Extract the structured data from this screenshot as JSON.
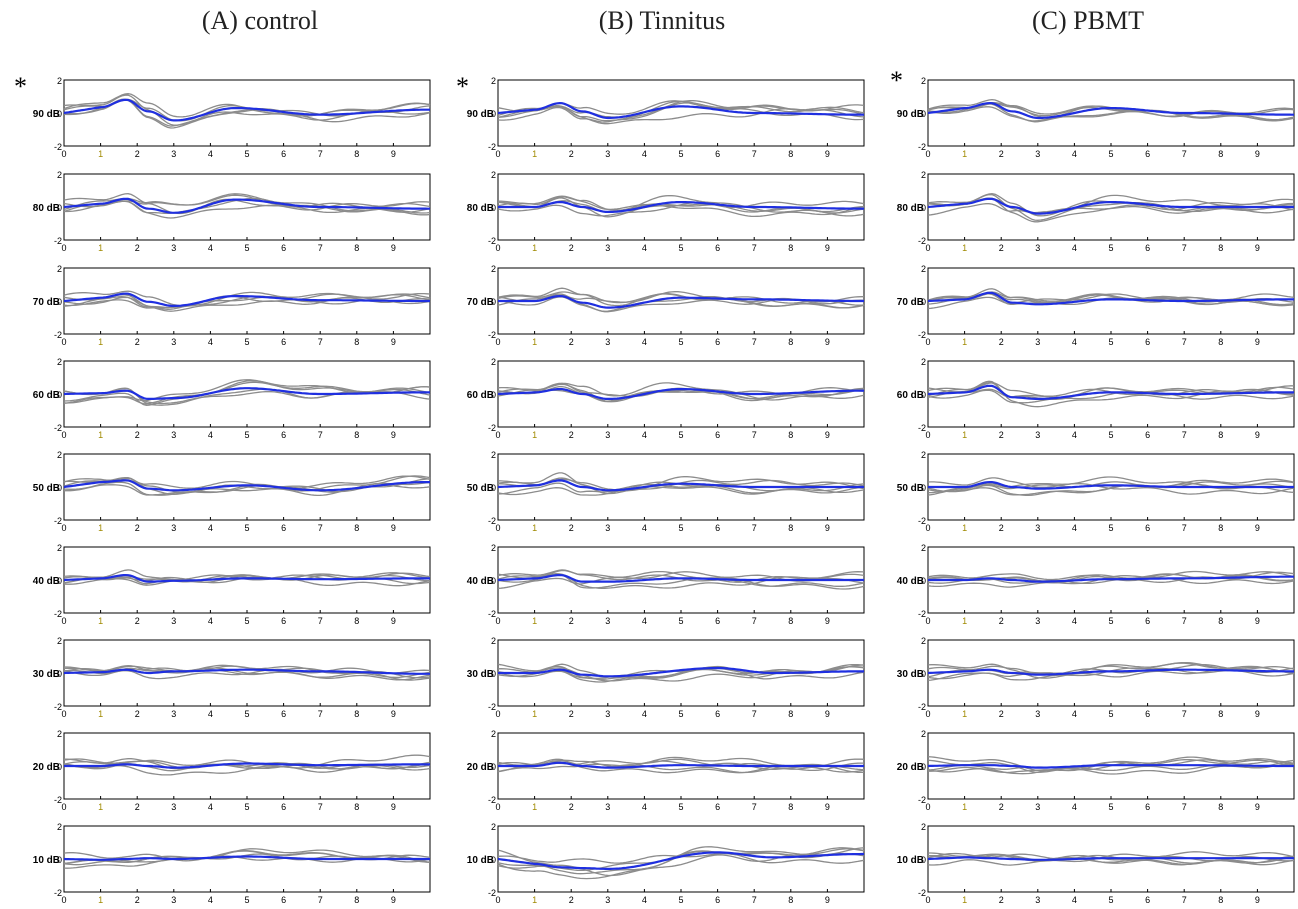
{
  "columns": [
    {
      "title": "(A) control"
    },
    {
      "title": "(B) Tinnitus"
    },
    {
      "title": "(C) PBMT"
    }
  ],
  "marker": "*",
  "colors": {
    "mean": "#1f2fe0",
    "individual": "#8c8c8c",
    "axis": "#000000",
    "tick_accent": "#a08a00"
  },
  "chart_data": {
    "type": "line",
    "layout": "grid of small multiples: 9 rows (stimulus level) x 3 columns (group)",
    "x_ticks": [
      0,
      1,
      2,
      3,
      4,
      5,
      6,
      7,
      8,
      9
    ],
    "xlim": [
      0,
      10
    ],
    "y_ticks": [
      -2,
      0,
      2
    ],
    "ylim": [
      -2,
      2
    ],
    "levels": [
      "90 dB",
      "80 dB",
      "70 dB",
      "60 dB",
      "50 dB",
      "40 dB",
      "30 dB",
      "20 dB",
      "10 dB"
    ],
    "series_styles": {
      "mean": "blue thick line",
      "individual": "gray thin lines (5 per panel)"
    },
    "panels": [
      [
        {
          "level": "90 dB",
          "mean_peaks": [
            [
              1.0,
              0.35
            ],
            [
              1.7,
              0.8
            ],
            [
              2.3,
              0.1
            ],
            [
              3.0,
              -0.45
            ],
            [
              4.7,
              0.3
            ],
            [
              7.0,
              -0.1
            ],
            [
              9.9,
              0.2
            ]
          ]
        },
        {
          "level": "80 dB",
          "mean_peaks": [
            [
              1.0,
              0.2
            ],
            [
              1.7,
              0.5
            ],
            [
              2.3,
              -0.1
            ],
            [
              3.0,
              -0.35
            ],
            [
              4.7,
              0.45
            ],
            [
              7.0,
              0.0
            ],
            [
              9.9,
              -0.1
            ]
          ]
        },
        {
          "level": "70 dB",
          "mean_peaks": [
            [
              1.0,
              0.2
            ],
            [
              1.7,
              0.45
            ],
            [
              2.3,
              -0.05
            ],
            [
              3.0,
              -0.3
            ],
            [
              4.7,
              0.3
            ],
            [
              7.0,
              0.05
            ],
            [
              9.9,
              0.0
            ]
          ]
        },
        {
          "level": "60 dB",
          "mean_peaks": [
            [
              1.0,
              0.05
            ],
            [
              1.7,
              0.2
            ],
            [
              2.3,
              -0.3
            ],
            [
              3.0,
              -0.25
            ],
            [
              5.0,
              0.35
            ],
            [
              7.0,
              0.0
            ],
            [
              9.9,
              0.1
            ]
          ]
        },
        {
          "level": "50 dB",
          "mean_peaks": [
            [
              1.0,
              0.3
            ],
            [
              1.7,
              0.4
            ],
            [
              2.3,
              -0.1
            ],
            [
              3.0,
              -0.2
            ],
            [
              5.0,
              0.1
            ],
            [
              7.0,
              -0.2
            ],
            [
              9.9,
              0.3
            ]
          ]
        },
        {
          "level": "40 dB",
          "mean_peaks": [
            [
              1.0,
              0.1
            ],
            [
              1.7,
              0.3
            ],
            [
              2.3,
              -0.1
            ],
            [
              3.0,
              -0.05
            ],
            [
              5.0,
              0.1
            ],
            [
              7.0,
              0.05
            ],
            [
              9.9,
              0.1
            ]
          ]
        },
        {
          "level": "30 dB",
          "mean_peaks": [
            [
              1.0,
              0.05
            ],
            [
              1.7,
              0.2
            ],
            [
              2.3,
              0.0
            ],
            [
              3.0,
              0.1
            ],
            [
              5.0,
              0.2
            ],
            [
              7.0,
              0.1
            ],
            [
              9.9,
              -0.05
            ]
          ]
        },
        {
          "level": "20 dB",
          "mean_peaks": [
            [
              1.0,
              0.0
            ],
            [
              1.7,
              0.1
            ],
            [
              2.3,
              0.0
            ],
            [
              3.0,
              -0.1
            ],
            [
              5.0,
              0.15
            ],
            [
              7.0,
              0.05
            ],
            [
              9.9,
              0.1
            ]
          ]
        },
        {
          "level": "10 dB",
          "mean_peaks": [
            [
              1.0,
              -0.05
            ],
            [
              1.7,
              0.0
            ],
            [
              2.3,
              0.05
            ],
            [
              3.0,
              0.0
            ],
            [
              5.0,
              0.15
            ],
            [
              7.0,
              0.0
            ],
            [
              9.9,
              0.0
            ]
          ]
        }
      ],
      [
        {
          "level": "90 dB",
          "mean_peaks": [
            [
              1.0,
              0.2
            ],
            [
              1.7,
              0.6
            ],
            [
              2.3,
              0.1
            ],
            [
              3.0,
              -0.3
            ],
            [
              5.0,
              0.4
            ],
            [
              7.0,
              0.0
            ],
            [
              9.9,
              -0.1
            ]
          ]
        },
        {
          "level": "80 dB",
          "mean_peaks": [
            [
              1.0,
              0.0
            ],
            [
              1.7,
              0.3
            ],
            [
              2.3,
              0.0
            ],
            [
              3.0,
              -0.3
            ],
            [
              5.0,
              0.3
            ],
            [
              7.0,
              0.0
            ],
            [
              9.9,
              -0.1
            ]
          ]
        },
        {
          "level": "70 dB",
          "mean_peaks": [
            [
              1.0,
              0.0
            ],
            [
              1.7,
              0.3
            ],
            [
              2.3,
              -0.1
            ],
            [
              3.0,
              -0.4
            ],
            [
              5.0,
              0.2
            ],
            [
              7.0,
              0.1
            ],
            [
              9.9,
              0.0
            ]
          ]
        },
        {
          "level": "60 dB",
          "mean_peaks": [
            [
              1.0,
              0.1
            ],
            [
              1.7,
              0.3
            ],
            [
              2.3,
              0.0
            ],
            [
              3.0,
              -0.3
            ],
            [
              5.0,
              0.3
            ],
            [
              7.0,
              0.0
            ],
            [
              9.9,
              0.2
            ]
          ]
        },
        {
          "level": "50 dB",
          "mean_peaks": [
            [
              1.0,
              0.1
            ],
            [
              1.7,
              0.4
            ],
            [
              2.3,
              0.0
            ],
            [
              3.0,
              -0.2
            ],
            [
              5.0,
              0.2
            ],
            [
              7.0,
              0.0
            ],
            [
              9.9,
              0.0
            ]
          ]
        },
        {
          "level": "40 dB",
          "mean_peaks": [
            [
              1.0,
              0.1
            ],
            [
              1.7,
              0.3
            ],
            [
              2.3,
              -0.1
            ],
            [
              3.0,
              -0.1
            ],
            [
              5.0,
              0.1
            ],
            [
              7.0,
              0.0
            ],
            [
              9.9,
              0.0
            ]
          ]
        },
        {
          "level": "30 dB",
          "mean_peaks": [
            [
              1.0,
              0.0
            ],
            [
              1.7,
              0.2
            ],
            [
              2.3,
              -0.1
            ],
            [
              3.0,
              -0.2
            ],
            [
              6.0,
              0.3
            ],
            [
              7.5,
              0.0
            ],
            [
              9.9,
              0.1
            ]
          ]
        },
        {
          "level": "20 dB",
          "mean_peaks": [
            [
              1.0,
              0.0
            ],
            [
              1.7,
              0.2
            ],
            [
              2.3,
              0.0
            ],
            [
              3.0,
              -0.1
            ],
            [
              5.0,
              0.05
            ],
            [
              7.0,
              0.0
            ],
            [
              9.9,
              0.0
            ]
          ]
        },
        {
          "level": "10 dB",
          "mean_peaks": [
            [
              1.0,
              -0.3
            ],
            [
              1.7,
              -0.5
            ],
            [
              2.3,
              -0.55
            ],
            [
              3.0,
              -0.6
            ],
            [
              6.0,
              0.4
            ],
            [
              7.5,
              0.1
            ],
            [
              9.9,
              0.3
            ]
          ]
        }
      ],
      [
        {
          "level": "90 dB",
          "mean_peaks": [
            [
              1.0,
              0.3
            ],
            [
              1.7,
              0.6
            ],
            [
              2.3,
              0.1
            ],
            [
              3.0,
              -0.3
            ],
            [
              5.0,
              0.3
            ],
            [
              7.0,
              0.0
            ],
            [
              9.9,
              -0.1
            ]
          ]
        },
        {
          "level": "80 dB",
          "mean_peaks": [
            [
              1.0,
              0.2
            ],
            [
              1.7,
              0.5
            ],
            [
              2.3,
              0.0
            ],
            [
              3.0,
              -0.4
            ],
            [
              5.0,
              0.3
            ],
            [
              7.0,
              0.0
            ],
            [
              9.9,
              0.0
            ]
          ]
        },
        {
          "level": "70 dB",
          "mean_peaks": [
            [
              1.0,
              0.1
            ],
            [
              1.7,
              0.5
            ],
            [
              2.3,
              -0.1
            ],
            [
              3.0,
              -0.2
            ],
            [
              5.0,
              0.1
            ],
            [
              7.0,
              0.0
            ],
            [
              9.9,
              0.1
            ]
          ]
        },
        {
          "level": "60 dB",
          "mean_peaks": [
            [
              1.0,
              0.1
            ],
            [
              1.7,
              0.5
            ],
            [
              2.3,
              -0.2
            ],
            [
              3.0,
              -0.3
            ],
            [
              5.0,
              0.1
            ],
            [
              7.0,
              0.0
            ],
            [
              9.9,
              0.1
            ]
          ]
        },
        {
          "level": "50 dB",
          "mean_peaks": [
            [
              1.0,
              0.0
            ],
            [
              1.7,
              0.3
            ],
            [
              2.3,
              0.0
            ],
            [
              3.0,
              -0.1
            ],
            [
              5.0,
              0.1
            ],
            [
              7.0,
              0.0
            ],
            [
              9.9,
              0.0
            ]
          ]
        },
        {
          "level": "40 dB",
          "mean_peaks": [
            [
              1.0,
              0.0
            ],
            [
              1.7,
              0.1
            ],
            [
              2.3,
              0.0
            ],
            [
              3.0,
              -0.1
            ],
            [
              5.0,
              0.05
            ],
            [
              7.0,
              0.1
            ],
            [
              9.9,
              0.2
            ]
          ]
        },
        {
          "level": "30 dB",
          "mean_peaks": [
            [
              1.0,
              0.1
            ],
            [
              1.7,
              0.2
            ],
            [
              2.3,
              0.0
            ],
            [
              3.0,
              -0.1
            ],
            [
              5.0,
              0.1
            ],
            [
              7.0,
              0.2
            ],
            [
              9.9,
              0.1
            ]
          ]
        },
        {
          "level": "20 dB",
          "mean_peaks": [
            [
              1.0,
              0.05
            ],
            [
              1.7,
              0.05
            ],
            [
              2.3,
              0.0
            ],
            [
              3.0,
              -0.1
            ],
            [
              5.0,
              0.05
            ],
            [
              7.0,
              0.05
            ],
            [
              9.9,
              0.0
            ]
          ]
        },
        {
          "level": "10 dB",
          "mean_peaks": [
            [
              1.0,
              0.1
            ],
            [
              1.7,
              0.05
            ],
            [
              2.3,
              0.0
            ],
            [
              3.0,
              -0.05
            ],
            [
              5.0,
              0.05
            ],
            [
              7.0,
              0.05
            ],
            [
              9.9,
              0.05
            ]
          ]
        }
      ]
    ]
  }
}
